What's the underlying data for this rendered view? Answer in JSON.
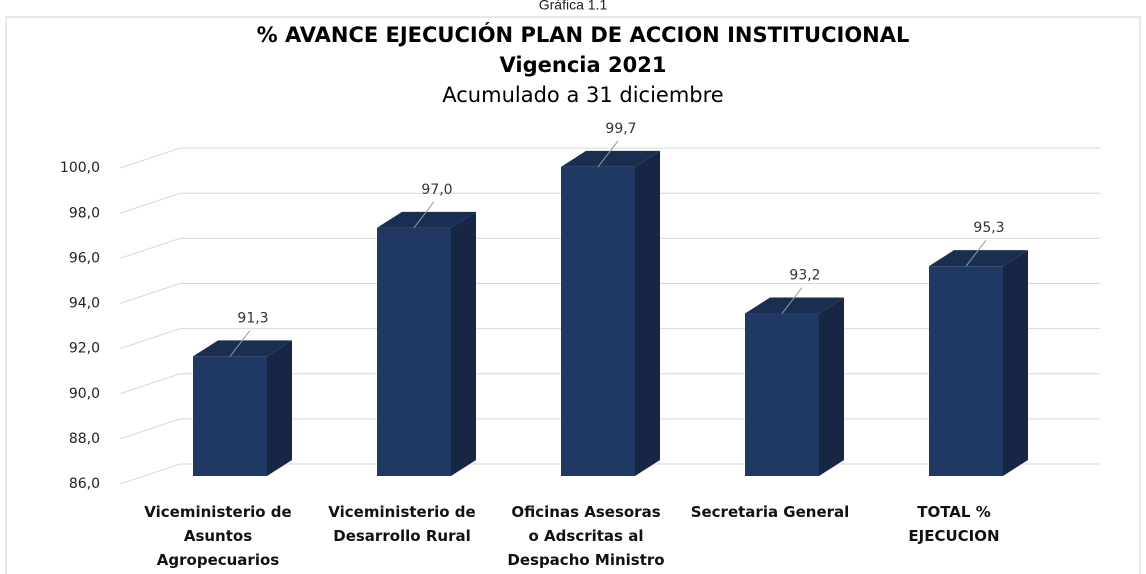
{
  "chart_data": {
    "type": "bar3d",
    "caption": "Gráfica 1.1",
    "title": "% AVANCE EJECUCIÓN PLAN DE ACCION INSTITUCIONAL",
    "subtitle": "Vigencia 2021",
    "subtitle2": "Acumulado a 31 diciembre",
    "categories": [
      "Viceministerio de\nAsuntos\nAgropecuarios",
      "Viceministerio de\nDesarrollo Rural",
      "Oficinas Asesoras\no Adscritas al\nDespacho Ministro",
      "Secretaria General",
      "TOTAL %\nEJECUCION"
    ],
    "values": [
      91.3,
      97.0,
      99.7,
      93.2,
      95.3
    ],
    "value_labels": [
      "91,3",
      "97,0",
      "99,7",
      "93,2",
      "95,3"
    ],
    "color": "#203864",
    "ylim": [
      86,
      102
    ],
    "yticks": [
      {
        "value": 86,
        "label": "86,0"
      },
      {
        "value": 88,
        "label": "88,0"
      },
      {
        "value": 90,
        "label": "90,0"
      },
      {
        "value": 92,
        "label": "92,0"
      },
      {
        "value": 94,
        "label": "94,0"
      },
      {
        "value": 96,
        "label": "96,0"
      },
      {
        "value": 98,
        "label": "98,0"
      },
      {
        "value": 100,
        "label": "100,0"
      }
    ],
    "grid": true
  }
}
